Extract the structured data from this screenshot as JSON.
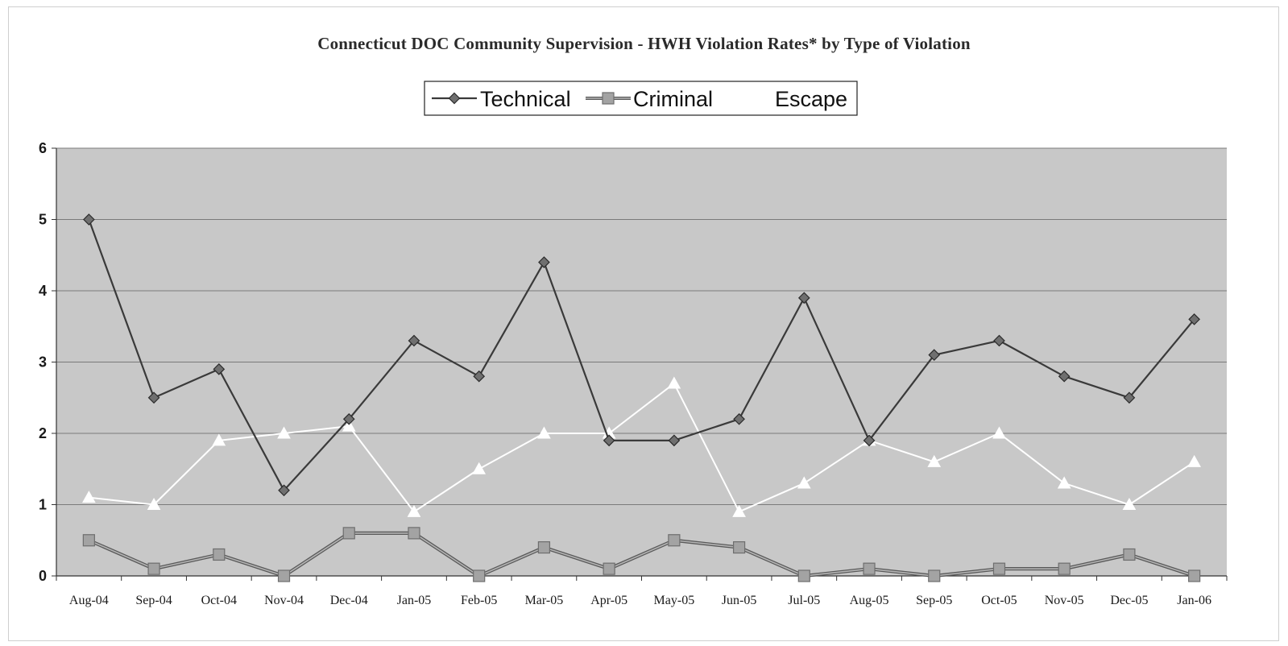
{
  "chart_data": {
    "type": "line",
    "title": "Connecticut DOC Community Supervision - HWH Violation Rates* by Type of Violation",
    "categories": [
      "Aug-04",
      "Sep-04",
      "Oct-04",
      "Nov-04",
      "Dec-04",
      "Jan-05",
      "Feb-05",
      "Mar-05",
      "Apr-05",
      "May-05",
      "Jun-05",
      "Jul-05",
      "Aug-05",
      "Sep-05",
      "Oct-05",
      "Nov-05",
      "Dec-05",
      "Jan-06"
    ],
    "yticks": [
      "0",
      "1",
      "2",
      "3",
      "4",
      "5",
      "6"
    ],
    "ylim": [
      0,
      6
    ],
    "grid": true,
    "legend_position": "top-center",
    "series": [
      {
        "name": "Technical",
        "marker": "diamond",
        "color": "#555555",
        "values": [
          5.0,
          2.5,
          2.9,
          1.2,
          2.2,
          3.3,
          2.8,
          4.4,
          1.9,
          1.9,
          2.2,
          3.9,
          1.9,
          3.1,
          3.3,
          2.8,
          2.5,
          3.6
        ]
      },
      {
        "name": "Criminal",
        "marker": "square",
        "color": "#8c8c8c",
        "values": [
          0.5,
          0.1,
          0.3,
          0.0,
          0.6,
          0.6,
          0.0,
          0.4,
          0.1,
          0.5,
          0.4,
          0.0,
          0.1,
          0.0,
          0.1,
          0.1,
          0.3,
          0.0
        ]
      },
      {
        "name": "Escape",
        "marker": "triangle",
        "color": "#ffffff",
        "values": [
          1.1,
          1.0,
          1.9,
          2.0,
          2.1,
          0.9,
          1.5,
          2.0,
          2.0,
          2.7,
          0.9,
          1.3,
          1.9,
          1.6,
          2.0,
          1.3,
          1.0,
          1.6
        ]
      }
    ]
  }
}
